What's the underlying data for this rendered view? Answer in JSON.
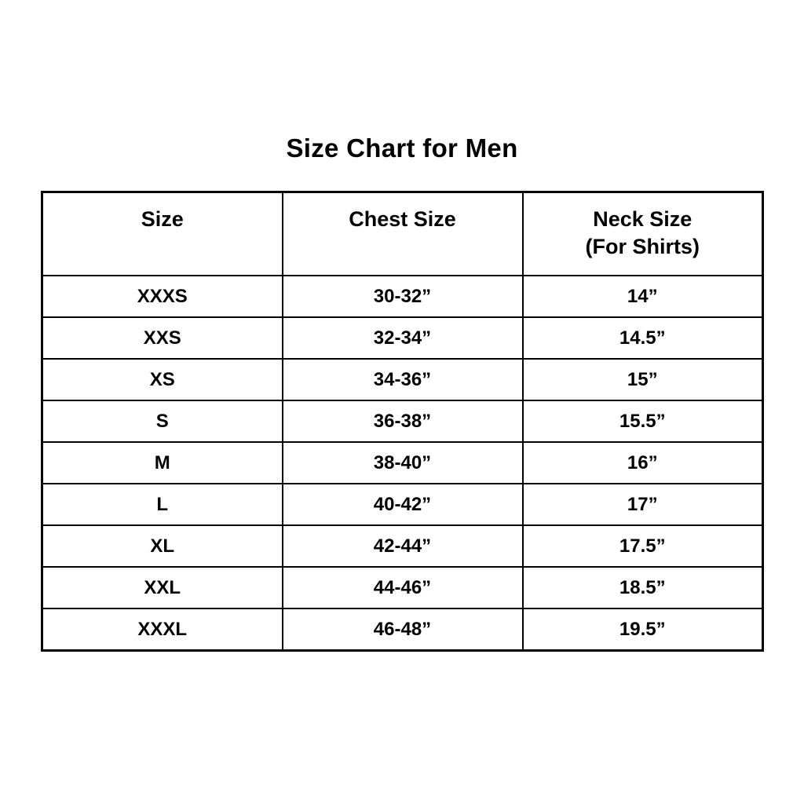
{
  "title": "Size Chart for Men",
  "colors": {
    "background": "#ffffff",
    "text": "#000000",
    "border": "#000000"
  },
  "chart_data": {
    "type": "table",
    "title": "Size Chart for Men",
    "columns": [
      {
        "label": "Size",
        "sublabel": ""
      },
      {
        "label": "Chest Size",
        "sublabel": ""
      },
      {
        "label": "Neck Size",
        "sublabel": "(For Shirts)"
      }
    ],
    "rows": [
      [
        "XXXS",
        "30-32”",
        "14”"
      ],
      [
        "XXS",
        "32-34”",
        "14.5”"
      ],
      [
        "XS",
        "34-36”",
        "15”"
      ],
      [
        "S",
        "36-38”",
        "15.5”"
      ],
      [
        "M",
        "38-40”",
        "16”"
      ],
      [
        "L",
        "40-42”",
        "17”"
      ],
      [
        "XL",
        "42-44”",
        "17.5”"
      ],
      [
        "XXL",
        "44-46”",
        "18.5”"
      ],
      [
        "XXXL",
        "46-48”",
        "19.5”"
      ]
    ]
  }
}
